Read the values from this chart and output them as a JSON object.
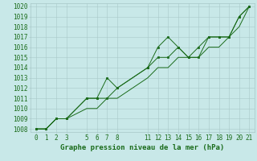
{
  "title": "Graphe pression niveau de la mer (hPa)",
  "x_hours": [
    0,
    1,
    2,
    3,
    5,
    6,
    7,
    8,
    11,
    12,
    13,
    14,
    15,
    16,
    17,
    18,
    19,
    20,
    21
  ],
  "line1_y": [
    1008,
    1008,
    1009,
    1009,
    1011,
    1011,
    1013,
    1012,
    1014,
    1016,
    1017,
    1016,
    1015,
    1016,
    1017,
    1017,
    1017,
    1019,
    1020
  ],
  "line2_y": [
    1008,
    1008,
    1009,
    1009,
    1011,
    1011,
    1011,
    1012,
    1014,
    1015,
    1015,
    1016,
    1015,
    1015,
    1017,
    1017,
    1017,
    1019,
    1020
  ],
  "line3_y": [
    1008,
    1008,
    1009,
    1009,
    1010,
    1010,
    1011,
    1011,
    1013,
    1014,
    1014,
    1015,
    1015,
    1015,
    1016,
    1016,
    1017,
    1018,
    1020
  ],
  "ylim_min": 1008,
  "ylim_max": 1020,
  "ytick_step": 1,
  "xticks": [
    0,
    1,
    2,
    3,
    5,
    6,
    7,
    8,
    11,
    12,
    13,
    14,
    15,
    16,
    17,
    18,
    19,
    20,
    21
  ],
  "line_color": "#1a6b1a",
  "marker_color": "#1a6b1a",
  "bg_color": "#c8e8e8",
  "grid_color": "#a8c8c8",
  "title_color": "#1a6b1a",
  "title_fontsize": 6.5,
  "tick_fontsize": 5.5
}
